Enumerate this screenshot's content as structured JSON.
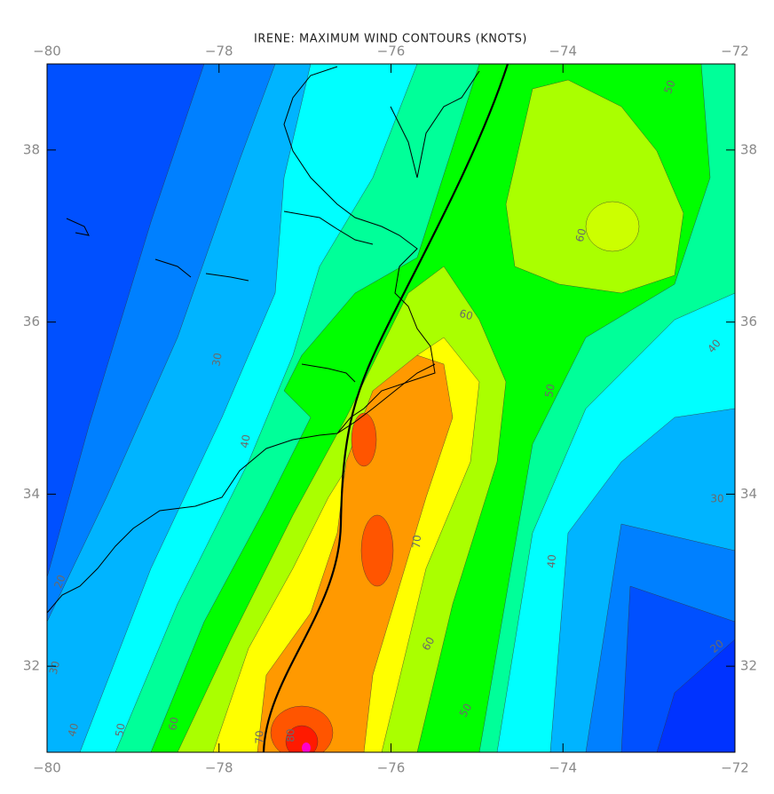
{
  "chart_data": {
    "type": "contour",
    "title": "IRENE: MAXIMUM WIND CONTOURS (KNOTS)",
    "xlim": [
      -80,
      -72
    ],
    "ylim": [
      31,
      39
    ],
    "xticks": [
      {
        "value": -80,
        "label": "−80"
      },
      {
        "value": -78,
        "label": "−78"
      },
      {
        "value": -76,
        "label": "−76"
      },
      {
        "value": -74,
        "label": "−74"
      },
      {
        "value": -72,
        "label": "−72"
      }
    ],
    "yticks": [
      32,
      34,
      36,
      38
    ],
    "contour_labels": [
      60,
      50,
      40,
      30,
      20,
      60,
      50,
      40,
      70,
      60,
      50,
      30,
      40,
      60,
      50,
      40,
      30,
      20,
      80,
      70
    ]
  }
}
